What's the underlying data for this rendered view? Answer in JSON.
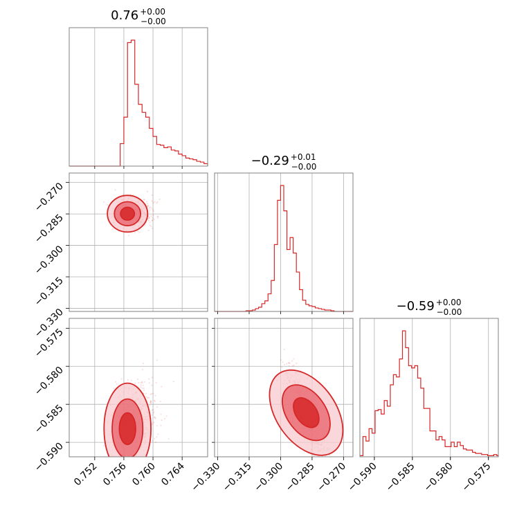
{
  "colors": {
    "accent": "#d62728",
    "fill_dark": "#e8606a",
    "fill_light": "#f7c9cd",
    "grid": "#b0b0b0",
    "frame": "#808080",
    "background": "#ffffff"
  },
  "chart_data": {
    "type": "corner",
    "parameters": [
      {
        "title_value": "0.76",
        "title_sup": "+0.00",
        "title_sub": "−0.00",
        "range": [
          0.7485,
          0.7675
        ],
        "ticks": [
          0.752,
          0.756,
          0.76,
          0.764
        ],
        "tick_labels": [
          "0.752",
          "0.756",
          "0.760",
          "0.764"
        ]
      },
      {
        "title_value": "−0.29",
        "title_sup": "+0.01",
        "title_sub": "−0.00",
        "range": [
          -0.3315,
          -0.2655
        ],
        "ticks": [
          -0.33,
          -0.315,
          -0.3,
          -0.285,
          -0.27
        ],
        "tick_labels": [
          "−0.330",
          "−0.315",
          "−0.300",
          "−0.285",
          "−0.270"
        ]
      },
      {
        "title_value": "−0.59",
        "title_sup": "+0.00",
        "title_sub": "−0.00",
        "range": [
          -0.5919,
          -0.5737
        ],
        "ticks": [
          -0.59,
          -0.585,
          -0.58,
          -0.575
        ],
        "tick_labels": [
          "−0.590",
          "−0.585",
          "−0.580",
          "−0.575"
        ]
      }
    ],
    "histograms": [
      {
        "param": 0,
        "bin_edges_start": 0.7485,
        "bin_width": 0.0005,
        "counts": [
          0,
          0,
          0,
          0,
          0,
          0,
          0,
          0,
          0,
          0,
          0,
          0,
          0,
          0,
          28,
          61,
          154,
          157,
          102,
          77,
          67,
          61,
          47,
          37,
          27,
          26,
          23,
          24,
          20,
          19,
          15,
          13,
          10,
          9,
          8,
          6,
          5,
          3,
          2,
          2,
          1,
          0
        ]
      },
      {
        "param": 1,
        "bin_edges_start": -0.3315,
        "bin_width": 0.0015,
        "counts": [
          0,
          0,
          0,
          0,
          0,
          0,
          0,
          0,
          0,
          0,
          1,
          1,
          2,
          4,
          6,
          11,
          15,
          25,
          44,
          95,
          158,
          179,
          143,
          88,
          105,
          83,
          56,
          31,
          16,
          10,
          8,
          7,
          5,
          4,
          3,
          2,
          2,
          1,
          0,
          0,
          0,
          0,
          0,
          0
        ]
      },
      {
        "param": 2,
        "bin_edges_start": -0.5919,
        "bin_width": 0.0004,
        "counts": [
          1,
          18,
          14,
          25,
          21,
          41,
          42,
          38,
          50,
          45,
          64,
          73,
          71,
          87,
          112,
          97,
          81,
          79,
          81,
          70,
          61,
          43,
          43,
          23,
          23,
          15,
          18,
          15,
          9,
          9,
          13,
          9,
          13,
          10,
          7,
          6,
          6,
          4,
          3,
          3,
          2,
          2,
          1,
          1,
          2,
          1,
          0,
          0
        ]
      }
    ],
    "joint_2d": [
      {
        "x_param": 0,
        "y_param": 1,
        "center": [
          0.7565,
          -0.2849
        ],
        "sigma": [
          0.0012,
          0.0038
        ],
        "contour_levels": [
          "dark",
          "mid",
          "light"
        ]
      },
      {
        "x_param": 0,
        "y_param": 2,
        "center": [
          0.7565,
          -0.5882
        ],
        "sigma": [
          0.0014,
          0.0026
        ],
        "contour_levels": [
          "dark",
          "mid",
          "light"
        ]
      },
      {
        "x_param": 1,
        "y_param": 2,
        "center": [
          -0.2878,
          -0.5861
        ],
        "sigma": [
          0.0052,
          0.0031
        ],
        "correlation": -0.85,
        "contour_levels": [
          "dark",
          "mid",
          "light"
        ]
      }
    ]
  }
}
